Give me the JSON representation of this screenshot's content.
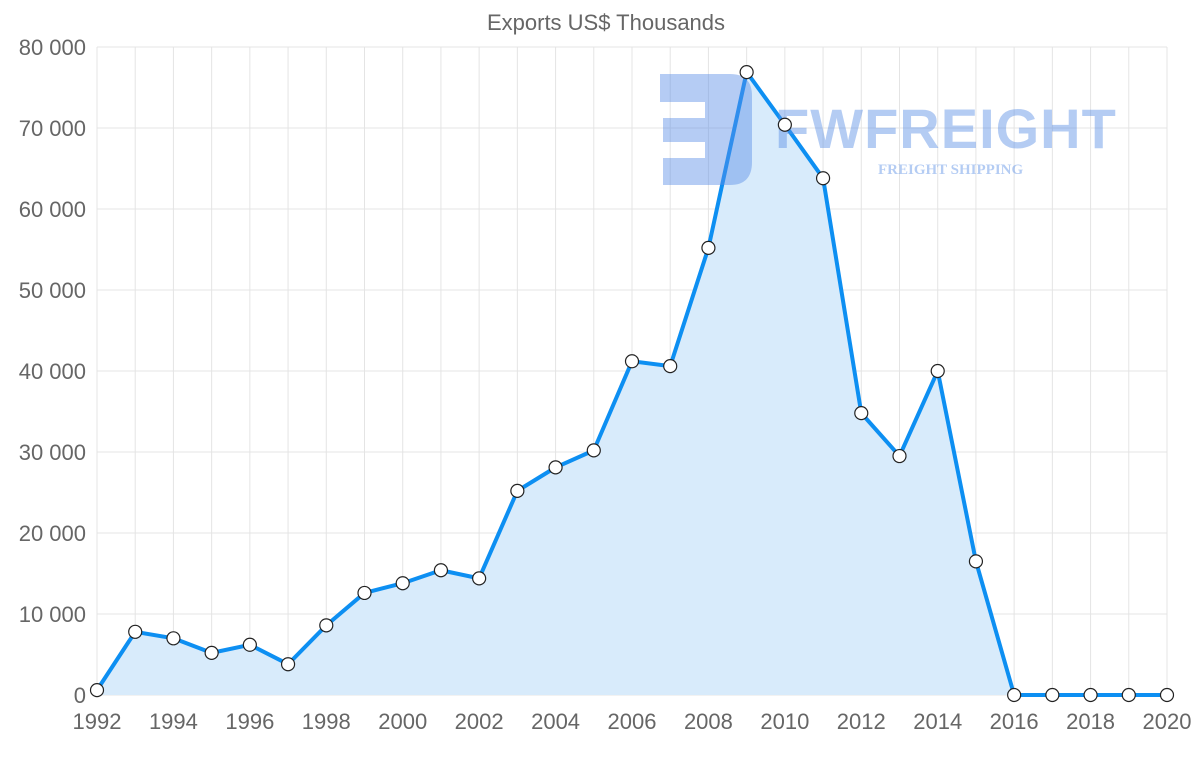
{
  "chart_data": {
    "type": "line",
    "title": "Exports US$ Thousands",
    "xlabel": "",
    "ylabel": "",
    "x": [
      1992,
      1993,
      1994,
      1995,
      1996,
      1997,
      1998,
      1999,
      2000,
      2001,
      2002,
      2003,
      2004,
      2005,
      2006,
      2007,
      2008,
      2009,
      2010,
      2011,
      2012,
      2013,
      2014,
      2015,
      2016,
      2017,
      2018,
      2019,
      2020
    ],
    "series": [
      {
        "name": "Exports US$ Thousands",
        "values": [
          600,
          7800,
          7000,
          5200,
          6200,
          3800,
          8600,
          12600,
          13800,
          15400,
          14400,
          25200,
          28100,
          30200,
          41200,
          40600,
          55200,
          76900,
          70400,
          63800,
          34800,
          29500,
          40000,
          16500,
          0,
          0,
          0,
          0,
          0
        ],
        "color": "#0d8ff2",
        "fill": "#d8ebfb"
      }
    ],
    "xlim": [
      1992,
      2020
    ],
    "ylim": [
      0,
      80000
    ],
    "x_tick_labels": [
      "1992",
      "1994",
      "1996",
      "1998",
      "2000",
      "2002",
      "2004",
      "2006",
      "2008",
      "2010",
      "2012",
      "2014",
      "2016",
      "2018",
      "2020"
    ],
    "y_tick_labels": [
      "0",
      "10 000",
      "20 000",
      "30 000",
      "40 000",
      "50 000",
      "60 000",
      "70 000",
      "80 000"
    ],
    "grid": true,
    "legend": "none"
  },
  "watermark": {
    "brand": "FWFREIGHT",
    "tagline": "FREIGHT SHIPPING"
  }
}
